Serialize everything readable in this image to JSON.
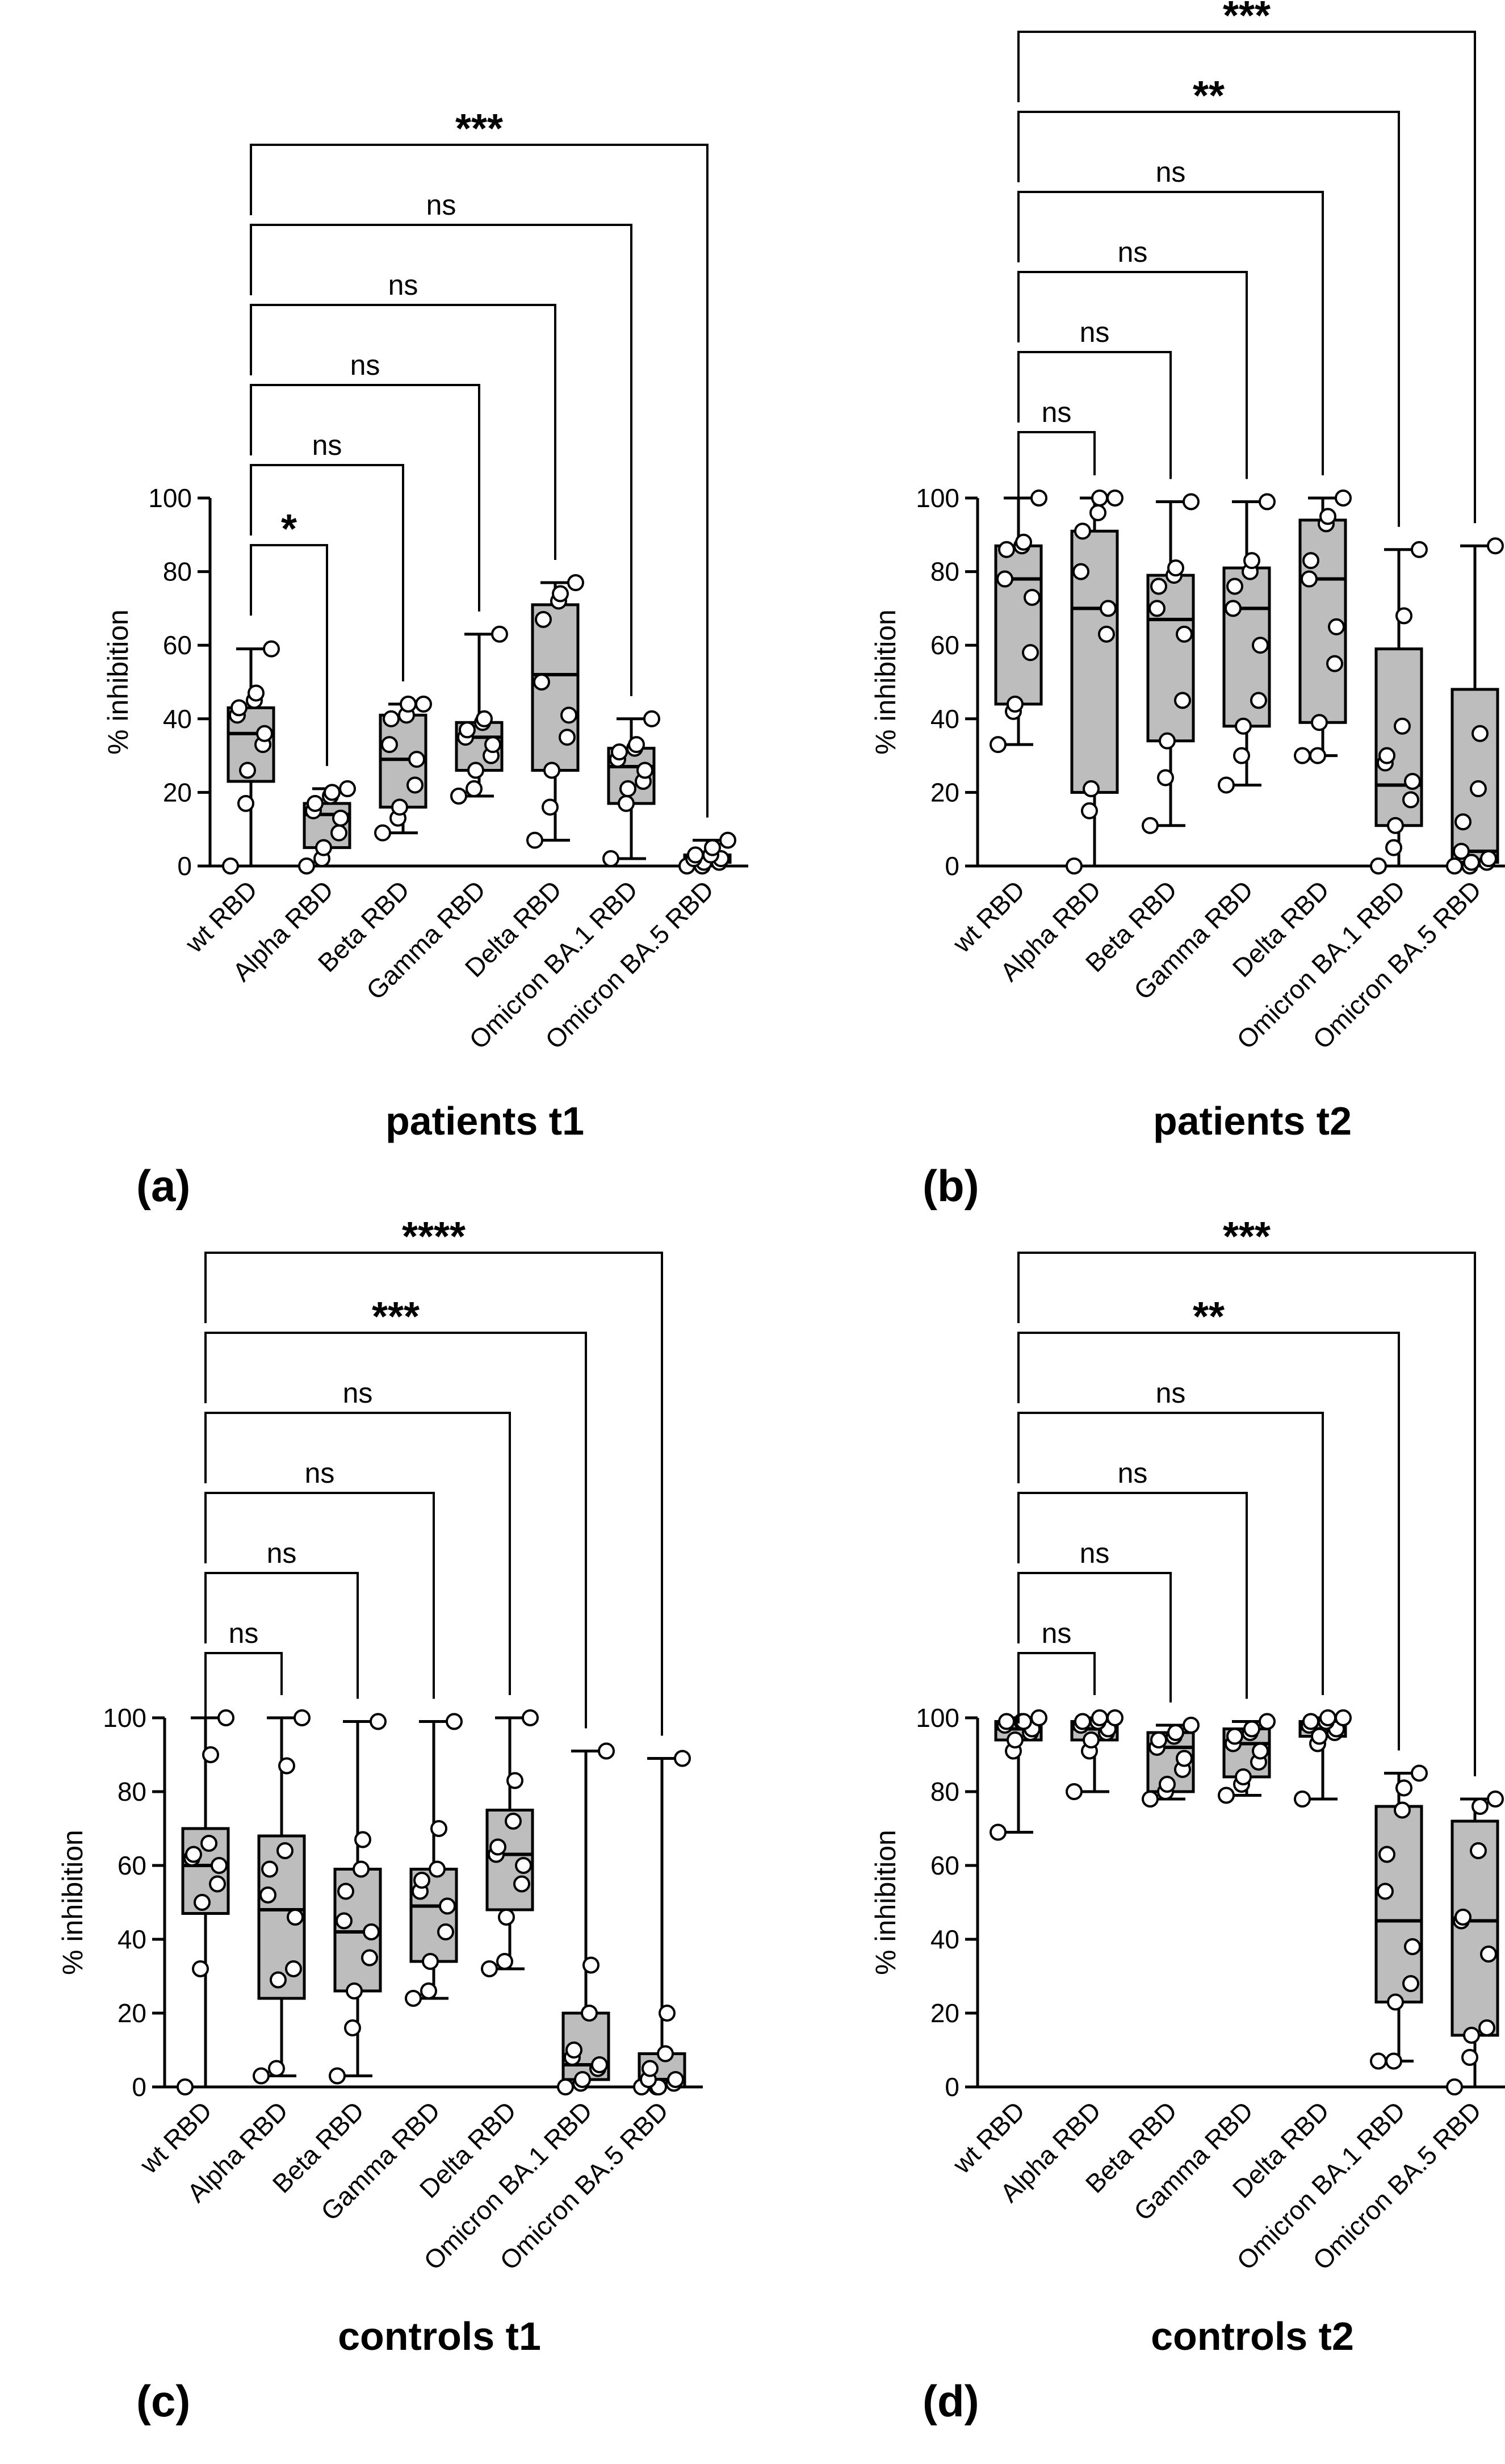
{
  "chart_data": [
    {
      "type": "box",
      "panel": "(a)",
      "title": "patients t1",
      "ylabel": "% inhibition",
      "ylim": [
        0,
        100
      ],
      "yticks": [
        0,
        20,
        40,
        60,
        80,
        100
      ],
      "categories": [
        "wt RBD",
        "Alpha RBD",
        "Beta RBD",
        "Gamma RBD",
        "Delta RBD",
        "Omicron BA.1 RBD",
        "Omicron BA.5 RBD"
      ],
      "boxes": [
        {
          "min": 0,
          "q1": 23,
          "median": 36,
          "q3": 43,
          "max": 59
        },
        {
          "min": 0,
          "q1": 5,
          "median": 14,
          "q3": 17,
          "max": 21
        },
        {
          "min": 9,
          "q1": 16,
          "median": 29,
          "q3": 41,
          "max": 44
        },
        {
          "min": 19,
          "q1": 26,
          "median": 35,
          "q3": 39,
          "max": 63
        },
        {
          "min": 7,
          "q1": 26,
          "median": 52,
          "q3": 71,
          "max": 77
        },
        {
          "min": 2,
          "q1": 17,
          "median": 27,
          "q3": 32,
          "max": 40
        },
        {
          "min": 0,
          "q1": 1,
          "median": 2,
          "q3": 3,
          "max": 7
        }
      ],
      "points": [
        [
          0,
          17,
          26,
          33,
          36,
          41,
          43,
          45,
          47,
          59
        ],
        [
          0,
          2,
          5,
          9,
          13,
          15,
          17,
          19,
          20,
          21
        ],
        [
          9,
          13,
          16,
          22,
          29,
          33,
          40,
          41,
          44,
          44
        ],
        [
          19,
          21,
          26,
          30,
          33,
          35,
          37,
          39,
          40,
          63
        ],
        [
          7,
          16,
          26,
          35,
          41,
          50,
          67,
          72,
          74,
          77
        ],
        [
          2,
          17,
          21,
          23,
          26,
          29,
          31,
          32,
          33,
          40
        ],
        [
          0,
          0,
          1,
          1,
          2,
          2,
          3,
          3,
          5,
          7
        ]
      ],
      "comparisons": [
        {
          "to": "Alpha RBD",
          "label": "*"
        },
        {
          "to": "Beta RBD",
          "label": "ns"
        },
        {
          "to": "Gamma RBD",
          "label": "ns"
        },
        {
          "to": "Delta RBD",
          "label": "ns"
        },
        {
          "to": "Omicron BA.1 RBD",
          "label": "ns"
        },
        {
          "to": "Omicron BA.5 RBD",
          "label": "***"
        }
      ]
    },
    {
      "type": "box",
      "panel": "(b)",
      "title": "patients t2",
      "ylabel": "% inhibition",
      "ylim": [
        0,
        100
      ],
      "yticks": [
        0,
        20,
        40,
        60,
        80,
        100
      ],
      "categories": [
        "wt RBD",
        "Alpha RBD",
        "Beta RBD",
        "Gamma RBD",
        "Delta RBD",
        "Omicron BA.1 RBD",
        "Omicron BA.5 RBD"
      ],
      "boxes": [
        {
          "min": 33,
          "q1": 44,
          "median": 78,
          "q3": 87,
          "max": 100
        },
        {
          "min": 0,
          "q1": 20,
          "median": 70,
          "q3": 91,
          "max": 100
        },
        {
          "min": 11,
          "q1": 34,
          "median": 67,
          "q3": 79,
          "max": 99
        },
        {
          "min": 22,
          "q1": 38,
          "median": 70,
          "q3": 81,
          "max": 99
        },
        {
          "min": 30,
          "q1": 39,
          "median": 78,
          "q3": 94,
          "max": 100
        },
        {
          "min": 0,
          "q1": 11,
          "median": 22,
          "q3": 59,
          "max": 86
        },
        {
          "min": 0,
          "q1": 1,
          "median": 4,
          "q3": 48,
          "max": 87
        }
      ],
      "points": [
        [
          33,
          42,
          44,
          58,
          73,
          78,
          86,
          87,
          88,
          100
        ],
        [
          0,
          15,
          21,
          63,
          70,
          80,
          91,
          96,
          100,
          100
        ],
        [
          11,
          24,
          34,
          45,
          63,
          70,
          76,
          79,
          81,
          99
        ],
        [
          22,
          30,
          38,
          45,
          60,
          70,
          76,
          80,
          83,
          99
        ],
        [
          30,
          30,
          39,
          55,
          65,
          78,
          83,
          93,
          95,
          100
        ],
        [
          0,
          5,
          11,
          18,
          23,
          28,
          30,
          38,
          68,
          86
        ],
        [
          0,
          0,
          1,
          1,
          2,
          4,
          12,
          21,
          36,
          87
        ]
      ],
      "comparisons": [
        {
          "to": "Alpha RBD",
          "label": "ns"
        },
        {
          "to": "Beta RBD",
          "label": "ns"
        },
        {
          "to": "Gamma RBD",
          "label": "ns"
        },
        {
          "to": "Delta RBD",
          "label": "ns"
        },
        {
          "to": "Omicron BA.1 RBD",
          "label": "**"
        },
        {
          "to": "Omicron BA.5 RBD",
          "label": "***"
        }
      ]
    },
    {
      "type": "box",
      "panel": "(c)",
      "title": "controls t1",
      "ylabel": "% inhibition",
      "ylim": [
        0,
        100
      ],
      "yticks": [
        0,
        20,
        40,
        60,
        80,
        100
      ],
      "categories": [
        "wt RBD",
        "Alpha RBD",
        "Beta RBD",
        "Gamma RBD",
        "Delta RBD",
        "Omicron BA.1 RBD",
        "Omicron BA.5 RBD"
      ],
      "boxes": [
        {
          "min": 0,
          "q1": 47,
          "median": 60,
          "q3": 70,
          "max": 100
        },
        {
          "min": 3,
          "q1": 24,
          "median": 48,
          "q3": 68,
          "max": 100
        },
        {
          "min": 3,
          "q1": 26,
          "median": 42,
          "q3": 59,
          "max": 99
        },
        {
          "min": 24,
          "q1": 34,
          "median": 49,
          "q3": 59,
          "max": 99
        },
        {
          "min": 32,
          "q1": 48,
          "median": 63,
          "q3": 75,
          "max": 100
        },
        {
          "min": 0,
          "q1": 2,
          "median": 6,
          "q3": 20,
          "max": 91
        },
        {
          "min": 0,
          "q1": 0,
          "median": 2,
          "q3": 9,
          "max": 89
        }
      ],
      "points": [
        [
          0,
          32,
          50,
          55,
          60,
          62,
          63,
          66,
          90,
          100
        ],
        [
          3,
          5,
          29,
          32,
          46,
          52,
          59,
          64,
          87,
          100
        ],
        [
          3,
          16,
          26,
          35,
          42,
          45,
          53,
          59,
          67,
          99
        ],
        [
          24,
          26,
          34,
          42,
          49,
          53,
          56,
          59,
          70,
          99
        ],
        [
          32,
          34,
          46,
          55,
          60,
          63,
          65,
          72,
          83,
          100
        ],
        [
          0,
          1,
          2,
          5,
          6,
          8,
          10,
          20,
          33,
          91
        ],
        [
          0,
          0,
          0,
          1,
          2,
          2,
          5,
          9,
          20,
          89
        ]
      ],
      "comparisons": [
        {
          "to": "Alpha RBD",
          "label": "ns"
        },
        {
          "to": "Beta RBD",
          "label": "ns"
        },
        {
          "to": "Gamma RBD",
          "label": "ns"
        },
        {
          "to": "Delta RBD",
          "label": "ns"
        },
        {
          "to": "Omicron BA.1 RBD",
          "label": "***"
        },
        {
          "to": "Omicron BA.5 RBD",
          "label": "****"
        }
      ]
    },
    {
      "type": "box",
      "panel": "(d)",
      "title": "controls t2",
      "ylabel": "% inhibition",
      "ylim": [
        0,
        100
      ],
      "yticks": [
        0,
        20,
        40,
        60,
        80,
        100
      ],
      "categories": [
        "wt RBD",
        "Alpha RBD",
        "Beta RBD",
        "Gamma RBD",
        "Delta RBD",
        "Omicron BA.1 RBD",
        "Omicron BA.5 RBD"
      ],
      "boxes": [
        {
          "min": 69,
          "q1": 94,
          "median": 97,
          "q3": 99,
          "max": 100
        },
        {
          "min": 80,
          "q1": 94,
          "median": 97,
          "q3": 99,
          "max": 100
        },
        {
          "min": 78,
          "q1": 80,
          "median": 92,
          "q3": 96,
          "max": 98
        },
        {
          "min": 79,
          "q1": 84,
          "median": 93,
          "q3": 97,
          "max": 99
        },
        {
          "min": 78,
          "q1": 95,
          "median": 97,
          "q3": 99,
          "max": 100
        },
        {
          "min": 7,
          "q1": 23,
          "median": 45,
          "q3": 76,
          "max": 85
        },
        {
          "min": 0,
          "q1": 14,
          "median": 45,
          "q3": 72,
          "max": 78
        }
      ],
      "points": [
        [
          69,
          91,
          94,
          96,
          97,
          98,
          99,
          99,
          99,
          100
        ],
        [
          80,
          91,
          94,
          96,
          97,
          98,
          99,
          99,
          100,
          100
        ],
        [
          78,
          80,
          82,
          86,
          89,
          92,
          94,
          95,
          96,
          98
        ],
        [
          79,
          82,
          84,
          88,
          91,
          93,
          95,
          96,
          97,
          99
        ],
        [
          78,
          93,
          95,
          96,
          97,
          98,
          99,
          99,
          100,
          100
        ],
        [
          7,
          7,
          23,
          28,
          38,
          53,
          63,
          75,
          81,
          85
        ],
        [
          0,
          8,
          14,
          16,
          36,
          45,
          46,
          64,
          76,
          78
        ]
      ],
      "comparisons": [
        {
          "to": "Alpha RBD",
          "label": "ns"
        },
        {
          "to": "Beta RBD",
          "label": "ns"
        },
        {
          "to": "Gamma RBD",
          "label": "ns"
        },
        {
          "to": "Delta RBD",
          "label": "ns"
        },
        {
          "to": "Omicron BA.1 RBD",
          "label": "**"
        },
        {
          "to": "Omicron BA.5 RBD",
          "label": "***"
        }
      ]
    }
  ]
}
